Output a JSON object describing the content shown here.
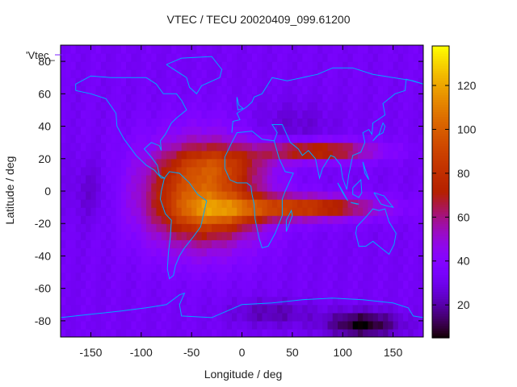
{
  "chart_data": {
    "type": "heatmap",
    "title": "VTEC / TECU 20020409_099.61200",
    "xlabel": "Longitude / deg",
    "ylabel": "Latitude / deg",
    "xlim": [
      -180,
      180
    ],
    "ylim": [
      -90,
      90
    ],
    "xticks": [
      -150,
      -100,
      -50,
      0,
      50,
      100,
      150
    ],
    "yticks": [
      -80,
      -60,
      -40,
      -20,
      0,
      20,
      40,
      60,
      80
    ],
    "colorbar": {
      "ticks": [
        20,
        40,
        60,
        80,
        100,
        120
      ],
      "range": [
        5,
        138
      ]
    },
    "legend_label": "'Vtec_",
    "colors": {
      "low": "#000000",
      "mid": "#7a1fff",
      "high_red": "#d03000",
      "max": "#ffff00",
      "coastline": "#00a8ff"
    },
    "field_features": [
      {
        "name": "background",
        "vtec": 33
      },
      {
        "name": "south-atlantic-core",
        "lon": -40,
        "lat": -10,
        "vtec": 115
      },
      {
        "name": "equatorial-anomaly-north",
        "lon": -30,
        "lat": 18,
        "vtec": 110
      },
      {
        "name": "equatorial-anomaly-south",
        "lon": -30,
        "lat": -15,
        "vtec": 112
      },
      {
        "name": "asian-tongue-north",
        "lon": 90,
        "lat": 25,
        "vtec": 85
      },
      {
        "name": "asian-tongue-south",
        "lon": 90,
        "lat": -10,
        "vtec": 95
      },
      {
        "name": "antarctic-minimum",
        "lon": 120,
        "lat": -82,
        "vtec": 6
      }
    ]
  }
}
